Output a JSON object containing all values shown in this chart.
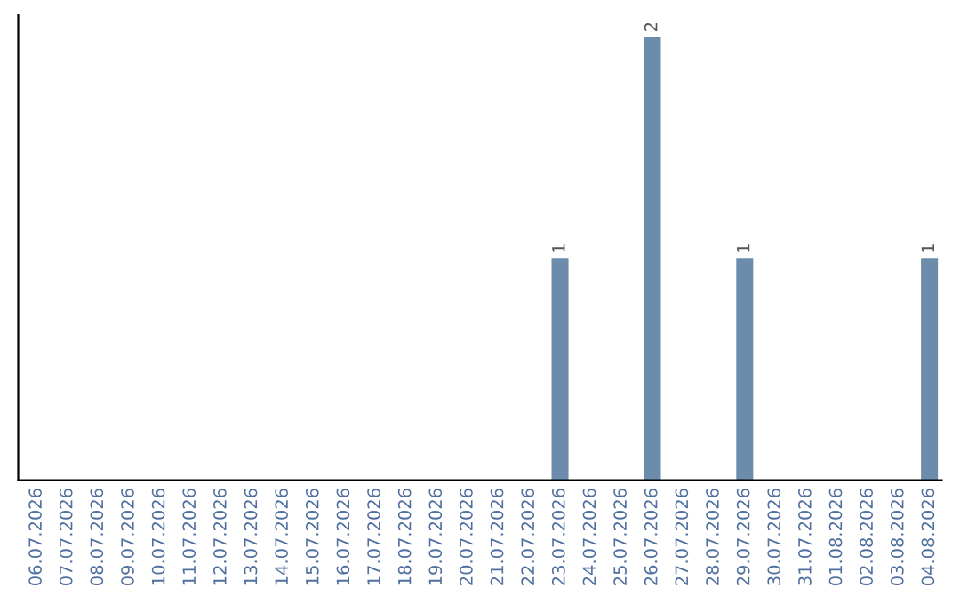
{
  "chart_data": {
    "type": "bar",
    "categories": [
      "06.07.2026",
      "07.07.2026",
      "08.07.2026",
      "09.07.2026",
      "10.07.2026",
      "11.07.2026",
      "12.07.2026",
      "13.07.2026",
      "14.07.2026",
      "15.07.2026",
      "16.07.2026",
      "17.07.2026",
      "18.07.2026",
      "19.07.2026",
      "20.07.2026",
      "21.07.2026",
      "22.07.2026",
      "23.07.2026",
      "24.07.2026",
      "25.07.2026",
      "26.07.2026",
      "27.07.2026",
      "28.07.2026",
      "29.07.2026",
      "30.07.2026",
      "31.07.2026",
      "01.08.2026",
      "02.08.2026",
      "03.08.2026",
      "04.08.2026"
    ],
    "values": [
      null,
      null,
      null,
      null,
      null,
      null,
      null,
      null,
      null,
      null,
      null,
      null,
      null,
      null,
      null,
      null,
      null,
      1,
      null,
      null,
      2,
      null,
      null,
      1,
      null,
      null,
      null,
      null,
      null,
      1
    ],
    "data_labels": true,
    "color": "#6b8cab",
    "tick_labels": "x",
    "grid": false,
    "legend": false
  }
}
